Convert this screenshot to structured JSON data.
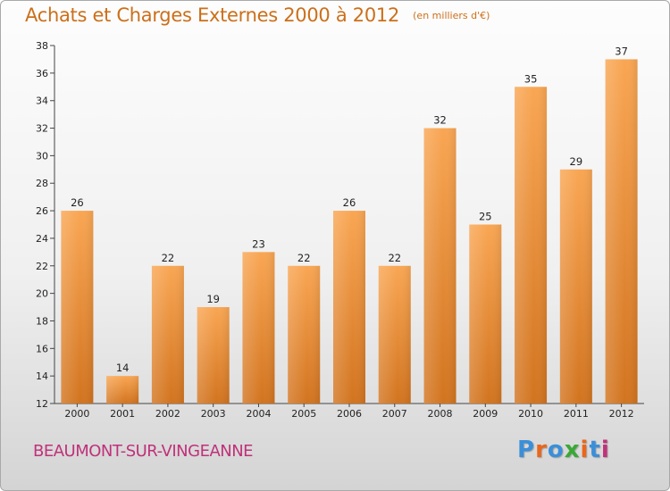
{
  "header": {
    "title": "Achats et Charges Externes 2000 à 2012",
    "subtitle": "(en milliers d'€)"
  },
  "footer": {
    "place": "BEAUMONT-SUR-VINGEANNE",
    "logo": "Proxiti"
  },
  "colors": {
    "title": "#cc6f1a",
    "place": "#c0317a",
    "bar_top": "#f9a653",
    "bar_bottom": "#d2741f",
    "logo": [
      "#3b8fd9",
      "#e8671c",
      "#3b8fd9",
      "#39a935",
      "#e8671c",
      "#3b8fd9",
      "#c0317a"
    ]
  },
  "chart_data": {
    "type": "bar",
    "categories": [
      "2000",
      "2001",
      "2002",
      "2003",
      "2004",
      "2005",
      "2006",
      "2007",
      "2008",
      "2009",
      "2010",
      "2011",
      "2012"
    ],
    "values": [
      26,
      14,
      22,
      19,
      23,
      22,
      26,
      22,
      32,
      25,
      35,
      29,
      37
    ],
    "title": "Achats et Charges Externes 2000 à 2012",
    "ylim": [
      12,
      38
    ],
    "yticks": [
      12,
      14,
      16,
      18,
      20,
      22,
      24,
      26,
      28,
      30,
      32,
      34,
      36,
      38
    ],
    "grid": false
  }
}
